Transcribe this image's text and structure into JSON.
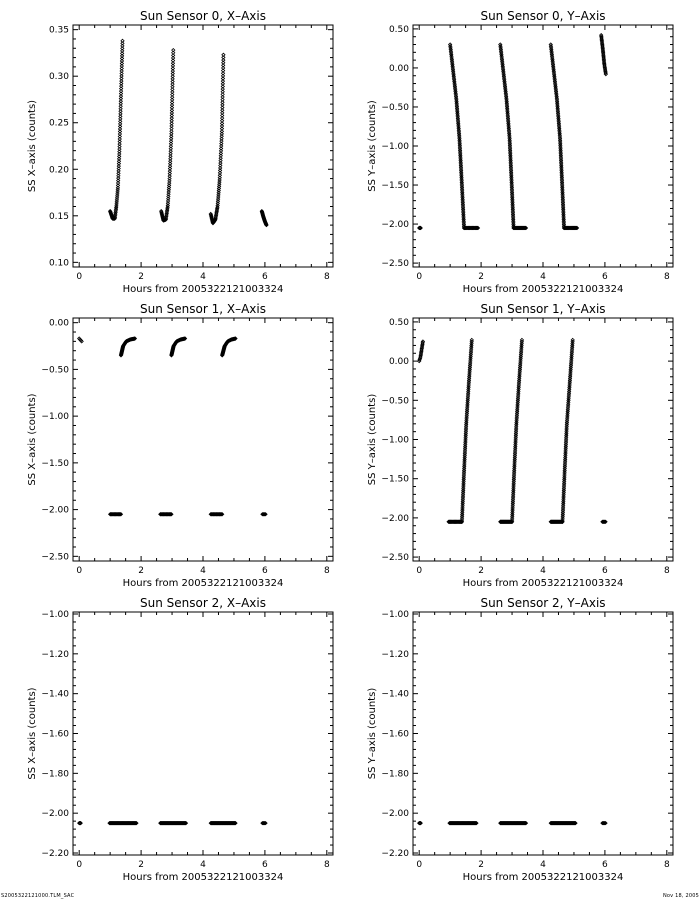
{
  "footer": {
    "left": "S2005322121000.TLM_SAC",
    "right": "Nov 18, 2005"
  },
  "chart_data": [
    {
      "type": "scatter",
      "title": "Sun Sensor 0, X–Axis",
      "xlabel": "Hours from 2005322121003324",
      "ylabel": "SS X–axis (counts)",
      "xlim": [
        -0.2,
        8.2
      ],
      "ylim": [
        0.095,
        0.355
      ],
      "xticks": [
        0,
        2,
        4,
        6,
        8
      ],
      "xtick_labels": [
        "0",
        "2",
        "4",
        "6",
        "8"
      ],
      "yticks": [
        0.1,
        0.15,
        0.2,
        0.25,
        0.3,
        0.35
      ],
      "ytick_labels": [
        "0.10",
        "0.15",
        "0.20",
        "0.25",
        "0.30",
        "0.35"
      ],
      "grid": false,
      "series": [
        {
          "segments": [
            {
              "type": "curve",
              "x": [
                1.0,
                1.08,
                1.15,
                1.2,
                1.25,
                1.3,
                1.35,
                1.4
              ],
              "y": [
                0.155,
                0.147,
                0.147,
                0.16,
                0.18,
                0.22,
                0.28,
                0.338
              ],
              "n": 95
            },
            {
              "type": "curve",
              "x": [
                2.65,
                2.72,
                2.8,
                2.86,
                2.92,
                2.98,
                3.04
              ],
              "y": [
                0.155,
                0.145,
                0.146,
                0.16,
                0.19,
                0.24,
                0.328
              ],
              "n": 90
            },
            {
              "type": "curve",
              "x": [
                4.25,
                4.32,
                4.4,
                4.47,
                4.54,
                4.61,
                4.66
              ],
              "y": [
                0.152,
                0.142,
                0.146,
                0.16,
                0.19,
                0.24,
                0.323
              ],
              "n": 90
            },
            {
              "type": "curve",
              "x": [
                5.9,
                5.95,
                6.0,
                6.05
              ],
              "y": [
                0.155,
                0.149,
                0.144,
                0.14
              ],
              "n": 30
            }
          ]
        }
      ]
    },
    {
      "type": "scatter",
      "title": "Sun Sensor 0, Y–Axis",
      "xlabel": "Hours from 2005322121003324",
      "ylabel": "SS Y–axis (counts)",
      "xlim": [
        -0.2,
        8.2
      ],
      "ylim": [
        -2.55,
        0.55
      ],
      "xticks": [
        0,
        2,
        4,
        6,
        8
      ],
      "xtick_labels": [
        "0",
        "2",
        "4",
        "6",
        "8"
      ],
      "yticks": [
        0.5,
        0.0,
        -0.5,
        -1.0,
        -1.5,
        -2.0,
        -2.5
      ],
      "ytick_labels": [
        "0.50",
        "0.00",
        "−0.50",
        "−1.00",
        "−1.50",
        "−2.00",
        "−2.50"
      ],
      "grid": false,
      "series": [
        {
          "segments": [
            {
              "type": "curve",
              "x": [
                0.0,
                0.05
              ],
              "y": [
                -2.05,
                -2.05
              ],
              "n": 4
            },
            {
              "type": "curve",
              "x": [
                1.0,
                1.1,
                1.2,
                1.3,
                1.38,
                1.45
              ],
              "y": [
                0.3,
                -0.05,
                -0.4,
                -0.9,
                -1.5,
                -2.05
              ],
              "n": 110
            },
            {
              "type": "curve",
              "x": [
                1.45,
                1.9
              ],
              "y": [
                -2.05,
                -2.05
              ],
              "n": 25
            },
            {
              "type": "curve",
              "x": [
                2.62,
                2.72,
                2.82,
                2.92,
                2.99,
                3.05
              ],
              "y": [
                0.3,
                -0.05,
                -0.4,
                -0.9,
                -1.5,
                -2.05
              ],
              "n": 110
            },
            {
              "type": "curve",
              "x": [
                3.05,
                3.45
              ],
              "y": [
                -2.05,
                -2.05
              ],
              "n": 25
            },
            {
              "type": "curve",
              "x": [
                4.25,
                4.35,
                4.45,
                4.55,
                4.62,
                4.68
              ],
              "y": [
                0.3,
                -0.05,
                -0.4,
                -0.9,
                -1.5,
                -2.05
              ],
              "n": 110
            },
            {
              "type": "curve",
              "x": [
                4.68,
                5.1
              ],
              "y": [
                -2.05,
                -2.05
              ],
              "n": 25
            },
            {
              "type": "curve",
              "x": [
                5.88,
                5.93,
                5.98,
                6.03
              ],
              "y": [
                0.42,
                0.25,
                0.05,
                -0.08
              ],
              "n": 30
            }
          ]
        }
      ]
    },
    {
      "type": "scatter",
      "title": "Sun Sensor 1, X–Axis",
      "xlabel": "Hours from 2005322121003324",
      "ylabel": "SS X–axis (counts)",
      "xlim": [
        -0.2,
        8.2
      ],
      "ylim": [
        -2.55,
        0.05
      ],
      "xticks": [
        0,
        2,
        4,
        6,
        8
      ],
      "xtick_labels": [
        "0",
        "2",
        "4",
        "6",
        "8"
      ],
      "yticks": [
        0.0,
        -0.5,
        -1.0,
        -1.5,
        -2.0,
        -2.5
      ],
      "ytick_labels": [
        "0.00",
        "−0.50",
        "−1.00",
        "−1.50",
        "−2.00",
        "−2.50"
      ],
      "grid": false,
      "series": [
        {
          "segments": [
            {
              "type": "curve",
              "x": [
                0.0,
                0.08
              ],
              "y": [
                -0.17,
                -0.2
              ],
              "n": 4
            },
            {
              "type": "curve",
              "x": [
                1.0,
                1.35
              ],
              "y": [
                -2.05,
                -2.05
              ],
              "n": 20
            },
            {
              "type": "curve",
              "x": [
                1.35,
                1.42,
                1.52,
                1.65,
                1.8
              ],
              "y": [
                -0.35,
                -0.25,
                -0.2,
                -0.18,
                -0.17
              ],
              "n": 55
            },
            {
              "type": "curve",
              "x": [
                2.62,
                2.98
              ],
              "y": [
                -2.05,
                -2.05
              ],
              "n": 20
            },
            {
              "type": "curve",
              "x": [
                2.98,
                3.05,
                3.15,
                3.28,
                3.42
              ],
              "y": [
                -0.35,
                -0.25,
                -0.2,
                -0.18,
                -0.17
              ],
              "n": 55
            },
            {
              "type": "curve",
              "x": [
                4.25,
                4.62
              ],
              "y": [
                -2.05,
                -2.05
              ],
              "n": 20
            },
            {
              "type": "curve",
              "x": [
                4.62,
                4.7,
                4.8,
                4.92,
                5.05
              ],
              "y": [
                -0.35,
                -0.25,
                -0.2,
                -0.18,
                -0.17
              ],
              "n": 55
            },
            {
              "type": "curve",
              "x": [
                5.92,
                6.02
              ],
              "y": [
                -2.05,
                -2.05
              ],
              "n": 5
            }
          ]
        }
      ]
    },
    {
      "type": "scatter",
      "title": "Sun Sensor 1, Y–Axis",
      "xlabel": "Hours from 2005322121003324",
      "ylabel": "SS Y–axis (counts)",
      "xlim": [
        -0.2,
        8.2
      ],
      "ylim": [
        -2.55,
        0.55
      ],
      "xticks": [
        0,
        2,
        4,
        6,
        8
      ],
      "xtick_labels": [
        "0",
        "2",
        "4",
        "6",
        "8"
      ],
      "yticks": [
        0.5,
        0.0,
        -0.5,
        -1.0,
        -1.5,
        -2.0,
        -2.5
      ],
      "ytick_labels": [
        "0.50",
        "0.00",
        "−0.50",
        "−1.00",
        "−1.50",
        "−2.00",
        "−2.50"
      ],
      "grid": false,
      "series": [
        {
          "segments": [
            {
              "type": "curve",
              "x": [
                0.0,
                0.04,
                0.08,
                0.12
              ],
              "y": [
                0.0,
                0.05,
                0.15,
                0.25
              ],
              "n": 15
            },
            {
              "type": "curve",
              "x": [
                0.95,
                1.38
              ],
              "y": [
                -2.05,
                -2.05
              ],
              "n": 25
            },
            {
              "type": "curve",
              "x": [
                1.38,
                1.45,
                1.52,
                1.6,
                1.7
              ],
              "y": [
                -2.05,
                -1.4,
                -0.8,
                -0.3,
                0.27
              ],
              "n": 100
            },
            {
              "type": "curve",
              "x": [
                2.62,
                3.0
              ],
              "y": [
                -2.05,
                -2.05
              ],
              "n": 25
            },
            {
              "type": "curve",
              "x": [
                3.0,
                3.07,
                3.14,
                3.22,
                3.32
              ],
              "y": [
                -2.05,
                -1.4,
                -0.8,
                -0.3,
                0.27
              ],
              "n": 100
            },
            {
              "type": "curve",
              "x": [
                4.25,
                4.63
              ],
              "y": [
                -2.05,
                -2.05
              ],
              "n": 25
            },
            {
              "type": "curve",
              "x": [
                4.63,
                4.7,
                4.77,
                4.86,
                4.96
              ],
              "y": [
                -2.05,
                -1.4,
                -0.8,
                -0.3,
                0.27
              ],
              "n": 100
            },
            {
              "type": "curve",
              "x": [
                5.92,
                6.02
              ],
              "y": [
                -2.05,
                -2.05
              ],
              "n": 5
            }
          ]
        }
      ]
    },
    {
      "type": "scatter",
      "title": "Sun Sensor 2, X–Axis",
      "xlabel": "Hours from 2005322121003324",
      "ylabel": "SS X–axis (counts)",
      "xlim": [
        -0.2,
        8.2
      ],
      "ylim": [
        -2.21,
        -0.99
      ],
      "xticks": [
        0,
        2,
        4,
        6,
        8
      ],
      "xtick_labels": [
        "0",
        "2",
        "4",
        "6",
        "8"
      ],
      "yticks": [
        -1.0,
        -1.2,
        -1.4,
        -1.6,
        -1.8,
        -2.0,
        -2.2
      ],
      "ytick_labels": [
        "−1.00",
        "−1.20",
        "−1.40",
        "−1.60",
        "−1.80",
        "−2.00",
        "−2.20"
      ],
      "grid": false,
      "series": [
        {
          "segments": [
            {
              "type": "curve",
              "x": [
                0.0,
                0.05
              ],
              "y": [
                -2.05,
                -2.05
              ],
              "n": 4
            },
            {
              "type": "curve",
              "x": [
                0.98,
                1.85
              ],
              "y": [
                -2.05,
                -2.05
              ],
              "n": 60
            },
            {
              "type": "curve",
              "x": [
                2.62,
                3.45
              ],
              "y": [
                -2.05,
                -2.05
              ],
              "n": 60
            },
            {
              "type": "curve",
              "x": [
                4.25,
                5.05
              ],
              "y": [
                -2.05,
                -2.05
              ],
              "n": 60
            },
            {
              "type": "curve",
              "x": [
                5.92,
                6.02
              ],
              "y": [
                -2.05,
                -2.05
              ],
              "n": 5
            }
          ]
        }
      ]
    },
    {
      "type": "scatter",
      "title": "Sun Sensor 2, Y–Axis",
      "xlabel": "Hours from 2005322121003324",
      "ylabel": "SS Y–axis (counts)",
      "xlim": [
        -0.2,
        8.2
      ],
      "ylim": [
        -2.21,
        -0.99
      ],
      "xticks": [
        0,
        2,
        4,
        6,
        8
      ],
      "xtick_labels": [
        "0",
        "2",
        "4",
        "6",
        "8"
      ],
      "yticks": [
        -1.0,
        -1.2,
        -1.4,
        -1.6,
        -1.8,
        -2.0,
        -2.2
      ],
      "ytick_labels": [
        "−1.00",
        "−1.20",
        "−1.40",
        "−1.60",
        "−1.80",
        "−2.00",
        "−2.20"
      ],
      "grid": false,
      "series": [
        {
          "segments": [
            {
              "type": "curve",
              "x": [
                0.0,
                0.05
              ],
              "y": [
                -2.05,
                -2.05
              ],
              "n": 4
            },
            {
              "type": "curve",
              "x": [
                0.98,
                1.85
              ],
              "y": [
                -2.05,
                -2.05
              ],
              "n": 60
            },
            {
              "type": "curve",
              "x": [
                2.62,
                3.45
              ],
              "y": [
                -2.05,
                -2.05
              ],
              "n": 60
            },
            {
              "type": "curve",
              "x": [
                4.25,
                5.05
              ],
              "y": [
                -2.05,
                -2.05
              ],
              "n": 60
            },
            {
              "type": "curve",
              "x": [
                5.92,
                6.02
              ],
              "y": [
                -2.05,
                -2.05
              ],
              "n": 5
            }
          ]
        }
      ]
    }
  ]
}
